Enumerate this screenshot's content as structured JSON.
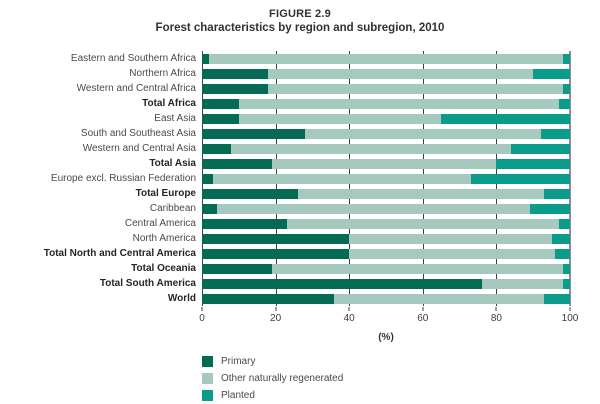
{
  "figure": {
    "label": "FIGURE 2.9",
    "title": "Forest characteristics by region and subregion, 2010"
  },
  "chart_data": {
    "type": "bar",
    "stacked": true,
    "orientation": "horizontal",
    "title": "Forest characteristics by region and subregion, 2010",
    "xlabel": "(%)",
    "xlim": [
      0,
      100
    ],
    "xticks": [
      0,
      20,
      40,
      60,
      80,
      100
    ],
    "grid": "vertical-ticks-in-row-gaps",
    "legend_position": "bottom-left",
    "categories": [
      "Eastern and Southern Africa",
      "Northern Africa",
      "Western and Central Africa",
      "Total Africa",
      "East Asia",
      "South and Southeast Asia",
      "Western and Central Asia",
      "Total Asia",
      "Europe excl. Russian Federation",
      "Total Europe",
      "Caribbean",
      "Central America",
      "North America",
      "Total North and Central America",
      "Total Oceania",
      "Total South America",
      "World"
    ],
    "category_bold": [
      false,
      false,
      false,
      true,
      false,
      false,
      false,
      true,
      false,
      true,
      false,
      false,
      false,
      true,
      true,
      true,
      true
    ],
    "series": [
      {
        "name": "Primary",
        "color": "#056a54",
        "values": [
          2,
          18,
          18,
          10,
          10,
          28,
          8,
          19,
          3,
          26,
          4,
          23,
          40,
          40,
          19,
          76,
          36
        ]
      },
      {
        "name": "Other naturally regenerated",
        "color": "#a6c9bf",
        "values": [
          96,
          72,
          80,
          87,
          55,
          64,
          76,
          61,
          70,
          67,
          85,
          74,
          55,
          56,
          79,
          22,
          57
        ]
      },
      {
        "name": "Planted",
        "color": "#0a9b8a",
        "values": [
          2,
          10,
          2,
          3,
          35,
          8,
          16,
          20,
          27,
          7,
          11,
          3,
          5,
          4,
          2,
          2,
          7
        ]
      }
    ],
    "colors": {
      "gridline": "#3d3d3c",
      "line_100": "#8f8f8f",
      "text": "#3e3d3c"
    }
  }
}
